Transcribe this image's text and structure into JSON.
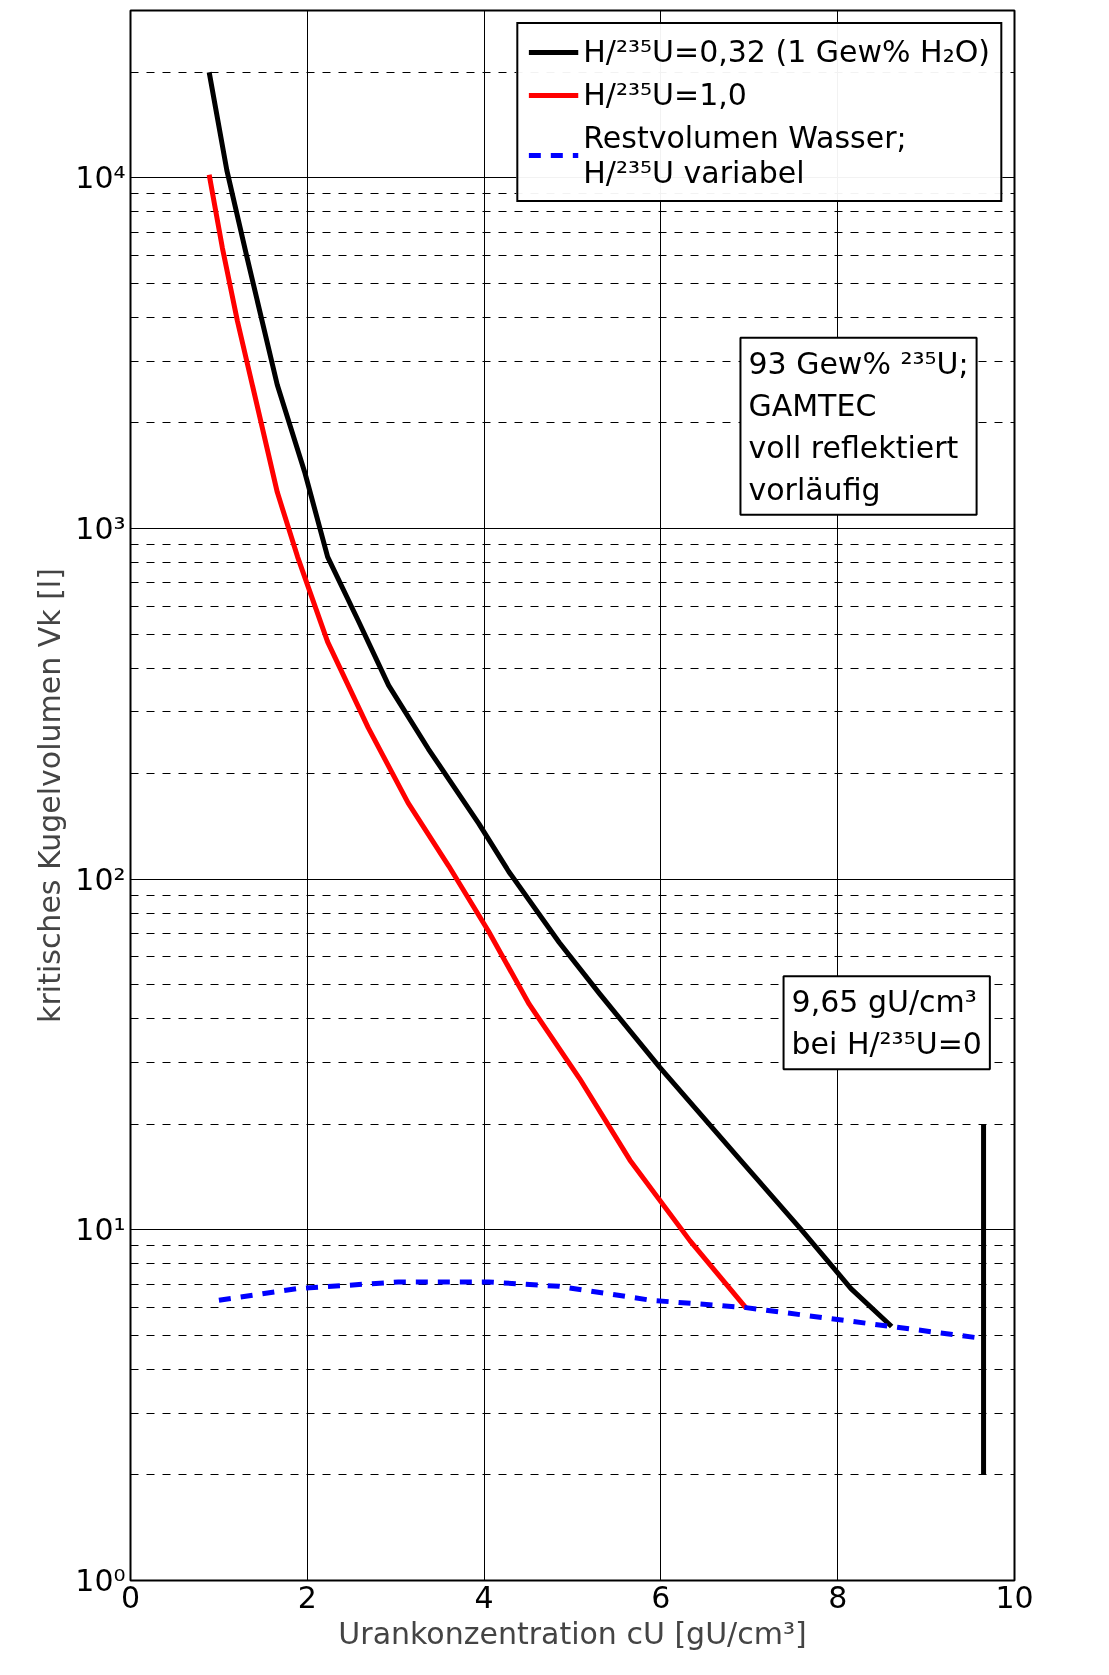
{
  "chart_data": {
    "type": "line",
    "xlabel": "Urankonzentration cU [gU/cm³]",
    "ylabel": "kritisches Kugelvolumen Vk [l]",
    "log": "y",
    "grid": true,
    "legend": "top right",
    "line_style": "solid",
    "xlim": [
      0,
      10
    ],
    "xticks": [
      0,
      2,
      4,
      6,
      8,
      10
    ],
    "ylim": [
      1,
      30000
    ],
    "yticks": [
      {
        "value": 1,
        "label": "10⁰"
      },
      {
        "value": 10,
        "label": "10¹"
      },
      {
        "value": 100,
        "label": "10²"
      },
      {
        "value": 1000,
        "label": "10³"
      },
      {
        "value": 10000,
        "label": "10⁴"
      }
    ],
    "series": [
      {
        "name": "H/²³⁵U=0,32 (1 Gew% H₂O)",
        "color": "#000000",
        "x": [
          0.89,
          1.09,
          1.32,
          1.66,
          1.97,
          2.23,
          2.57,
          2.92,
          3.37,
          3.94,
          4.28,
          4.85,
          5.31,
          5.99,
          6.9,
          7.59,
          8.15,
          8.61
        ],
        "values": [
          20000,
          10500,
          5900,
          2570,
          1450,
          830,
          550,
          357,
          235,
          144,
          105,
          66,
          47,
          29,
          15.8,
          10,
          6.8,
          5.3
        ]
      },
      {
        "name": "H/²³⁵U=1,0",
        "color": "#ff0000",
        "x": [
          0.89,
          1.04,
          1.21,
          1.44,
          1.66,
          1.89,
          2.23,
          2.69,
          3.14,
          3.6,
          4.05,
          4.51,
          5.08,
          5.65,
          6.33,
          6.96
        ],
        "values": [
          10200,
          6300,
          3900,
          2200,
          1270,
          830,
          475,
          270,
          165,
          109,
          71,
          44,
          27,
          15.8,
          9.3,
          6.0
        ]
      },
      {
        "name": "Restvolumen Wasser;\nH/²³⁵U variabel",
        "color": "#0000ff",
        "line_style": "dashed",
        "x": [
          1.0,
          1.89,
          3.03,
          4.05,
          4.85,
          5.88,
          6.96,
          8.61,
          9.64
        ],
        "values": [
          6.3,
          6.8,
          7.1,
          7.1,
          6.9,
          6.3,
          6.0,
          5.3,
          4.9
        ]
      },
      {
        "color": "#000000",
        "x": [
          9.65,
          9.65
        ],
        "values": [
          2,
          20
        ]
      }
    ],
    "annotations": [
      "93 Gew% ²³⁵U;\nGAMTEC\nvoll reflektiert\nvorläufig",
      {
        "text": "9,65 gU/cm³\nbei H/²³⁵U=0",
        "x": 9.65,
        "y": 20
      }
    ]
  }
}
